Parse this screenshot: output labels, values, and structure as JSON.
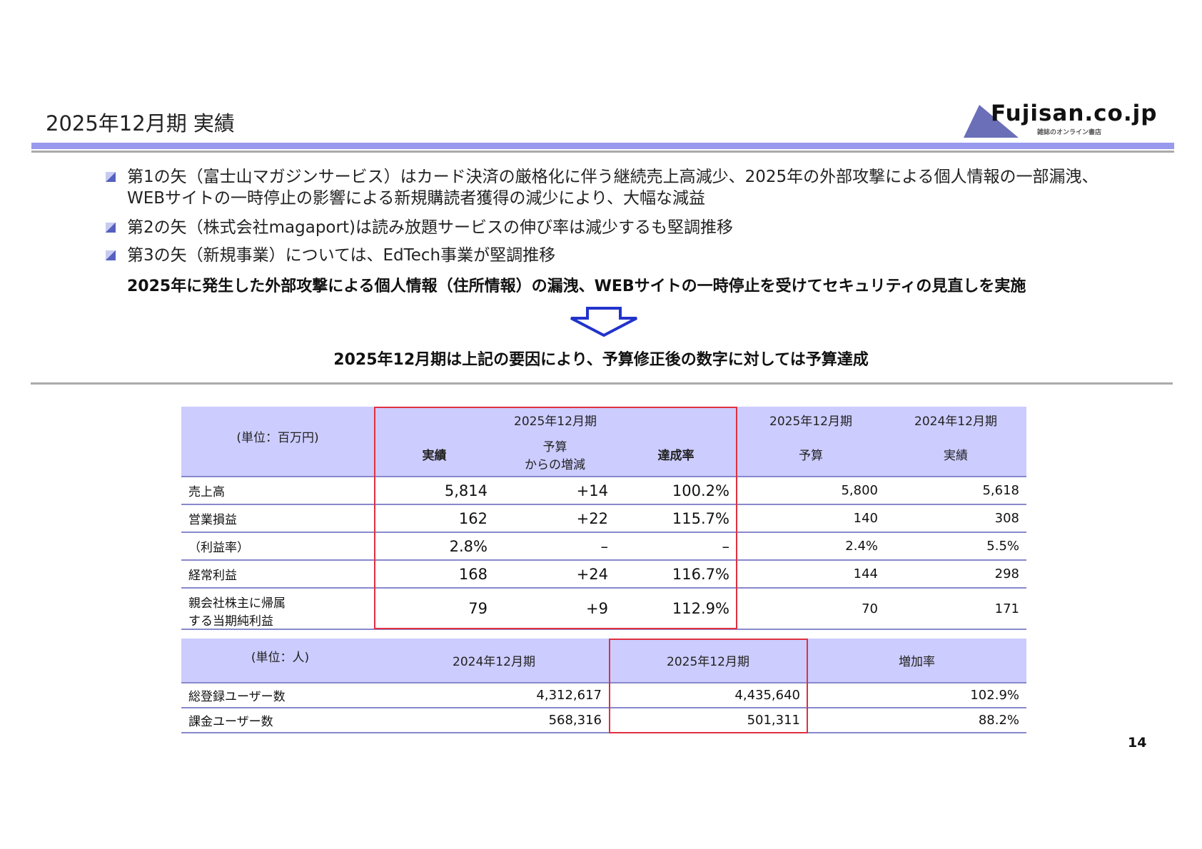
{
  "title": "2025年12月期 実績",
  "logo": {
    "name": "Fujisan.co.jp",
    "tagline": "雑誌のオンライン書店"
  },
  "bullets": [
    {
      "line1": "第1の矢（富士山マガジンサービス）はカード決済の厳格化に伴う継続売上高減少、2025年の外部攻撃による個人情報の一部漏洩、",
      "line2": "WEBサイトの一時停止の影響による新規購読者獲得の減少により、大幅な減益"
    },
    {
      "line1": "第2の矢（株式会社magaport)は読み放題サービスの伸び率は減少するも堅調推移"
    },
    {
      "line1": "第3の矢（新規事業）については、EdTech事業が堅調推移"
    }
  ],
  "bold_note": "2025年に発生した外部攻撃による個人情報（住所情報）の漏洩、WEBサイトの一時停止を受けてセキュリティの見直しを実施",
  "summary": "2025年12月期は上記の要因により、予算修正後の数字に対しては予算達成",
  "table1": {
    "unit": "(単位：百万円)",
    "group": "2025年12月期",
    "group_budget": "2025年12月期",
    "group_prev": "2024年12月期",
    "cols": [
      "実績",
      "予算\nからの増減",
      "達成率",
      "予算",
      "実績"
    ],
    "col_budget_diff_1": "予算",
    "col_budget_diff_2": "からの増減",
    "rows": [
      {
        "label": "売上高",
        "actual": "5,814",
        "diff": "+14",
        "rate": "100.2%",
        "budget": "5,800",
        "prev": "5,618"
      },
      {
        "label": "営業損益",
        "actual": "162",
        "diff": "+22",
        "rate": "115.7%",
        "budget": "140",
        "prev": "308"
      },
      {
        "label": "（利益率）",
        "actual": "2.8%",
        "diff": "–",
        "rate": "–",
        "budget": "2.4%",
        "prev": "5.5%"
      },
      {
        "label": "経常利益",
        "actual": "168",
        "diff": "+24",
        "rate": "116.7%",
        "budget": "144",
        "prev": "298"
      },
      {
        "label1": "親会社株主に帰属",
        "label2": "する当期純利益",
        "actual": "79",
        "diff": "+9",
        "rate": "112.9%",
        "budget": "70",
        "prev": "171"
      }
    ]
  },
  "table2": {
    "unit": "(単位：人)",
    "cols": [
      "2024年12月期",
      "2025年12月期",
      "増加率"
    ],
    "rows": [
      {
        "label": "総登録ユーザー数",
        "prev": "4,312,617",
        "cur": "4,435,640",
        "rate": "102.9%"
      },
      {
        "label": "課金ユーザー数",
        "prev": "568,316",
        "cur": "501,311",
        "rate": "88.2%"
      }
    ]
  },
  "page_number": "14",
  "colors": {
    "header_bg": "#ccccff",
    "accent_bar": "#9999ee",
    "highlight_border": "#e03040"
  }
}
